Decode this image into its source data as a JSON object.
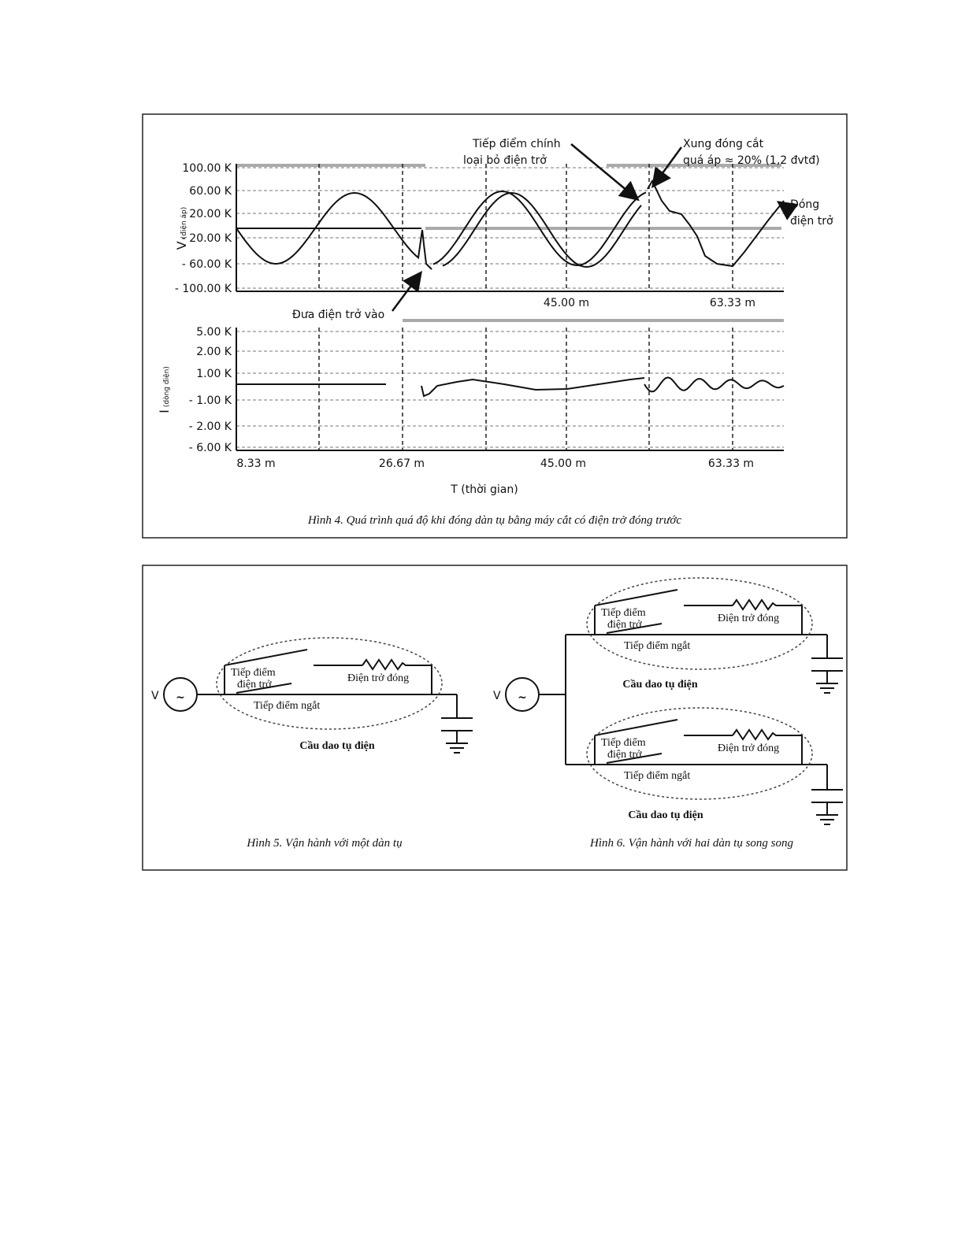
{
  "figure_4": {
    "v_axis": {
      "label": "V",
      "sublabel": "(điện áp)",
      "ticks": [
        "100.00 K",
        "60.00 K",
        "20.00 K",
        "- 20.00 K",
        "- 60.00 K",
        "- 100.00 K"
      ]
    },
    "i_axis": {
      "label": "I",
      "sublabel": "(dòng điện)",
      "ticks": [
        "5.00 K",
        "2.00 K",
        "1.00 K",
        "- 1.00 K",
        "- 2.00 K",
        "- 6.00 K"
      ]
    },
    "upper_time_ticks": [
      "45.00 m",
      "63.33 m"
    ],
    "time_ticks": [
      "8.33 m",
      "26.67 m",
      "45.00 m",
      "63.33 m"
    ],
    "time_label": "T (thời gian)",
    "annotations": {
      "main_contact": [
        "Tiếp điểm chính",
        "loại bỏ điện trở"
      ],
      "surge": [
        "Xung đóng cắt",
        "quá áp ≈ 20% (1,2 đvtđ)"
      ],
      "closing": [
        "Đóng",
        "điện trở"
      ],
      "insert": "Đưa điện trở vào"
    },
    "caption": "Hình 4. Quá trình quá độ khi đóng dàn tụ bằng máy cắt có điện trở đóng trước"
  },
  "figure_5": {
    "source": "V",
    "switch": {
      "resistor_contact": [
        "Tiếp điểm",
        "điện trở"
      ],
      "resistor": "Điện trở đóng",
      "break_contact": "Tiếp điểm ngắt",
      "label": "Cầu dao tụ điện"
    },
    "caption": "Hình 5. Vận hành với một dàn tụ"
  },
  "figure_6": {
    "source": "V",
    "switches": [
      {
        "resistor_contact": [
          "Tiếp điểm",
          "điện trở"
        ],
        "resistor": "Điện trở đóng",
        "break_contact": "Tiếp điểm ngắt",
        "label": "Cầu dao tụ điện"
      },
      {
        "resistor_contact": [
          "Tiếp điểm",
          "điện trở"
        ],
        "resistor": "Điện trở đóng",
        "break_contact": "Tiếp điểm ngắt",
        "label": "Cầu dao tụ điện"
      }
    ],
    "caption": "Hình 6. Vận hành với hai dàn tụ song song"
  }
}
